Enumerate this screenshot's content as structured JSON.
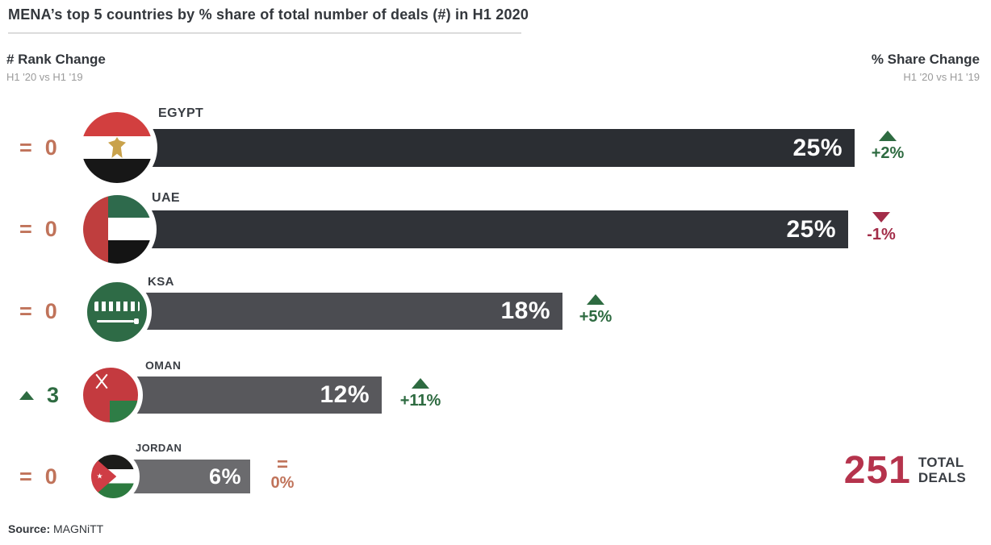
{
  "title": "MENA’s top 5 countries by % share of total number of deals (#) in H1 2020",
  "headers": {
    "rank": {
      "title": "# Rank Change",
      "subtitle": "H1 '20 vs H1 '19"
    },
    "share": {
      "title": "% Share Change",
      "subtitle": "H1 '20 vs H1 '19"
    }
  },
  "rows": [
    {
      "country": "EGYPT",
      "share_label": "25%",
      "rank_change": {
        "symbol": "=",
        "value": "0"
      },
      "share_change": {
        "direction": "up",
        "label": "+2%"
      }
    },
    {
      "country": "UAE",
      "share_label": "25%",
      "rank_change": {
        "symbol": "=",
        "value": "0"
      },
      "share_change": {
        "direction": "down",
        "label": "-1%"
      }
    },
    {
      "country": "KSA",
      "share_label": "18%",
      "rank_change": {
        "symbol": "=",
        "value": "0"
      },
      "share_change": {
        "direction": "up",
        "label": "+5%"
      }
    },
    {
      "country": "OMAN",
      "share_label": "12%",
      "rank_change": {
        "direction": "up",
        "value": "3"
      },
      "share_change": {
        "direction": "up",
        "label": "+11%"
      }
    },
    {
      "country": "JORDAN",
      "share_label": "6%",
      "rank_change": {
        "symbol": "=",
        "value": "0"
      },
      "share_change": {
        "symbol": "=",
        "label": "0%"
      }
    }
  ],
  "total": {
    "value": "251",
    "line1": "TOTAL",
    "line2": "DEALS"
  },
  "source": {
    "label": "Source:",
    "value": "MAGNiTT"
  },
  "colors": {
    "bar_egypt": "#2b2e33",
    "bar_uae": "#303338",
    "bar_ksa": "#4b4c51",
    "bar_oman": "#58585c",
    "bar_jordan": "#6b6b6e",
    "positive_green": "#2e6b41",
    "negative_red": "#a32d49",
    "neutral_orange": "#c0735a",
    "total_maroon": "#b5334c",
    "text_dark": "#33373c",
    "text_gray": "#9b9b9b"
  },
  "chart_data": {
    "type": "bar",
    "orientation": "horizontal",
    "title": "MENA’s top 5 countries by % share of total number of deals (#) in H1 2020",
    "categories": [
      "EGYPT",
      "UAE",
      "KSA",
      "OMAN",
      "JORDAN"
    ],
    "values": [
      25,
      25,
      18,
      12,
      6
    ],
    "unit": "% share of total number of deals",
    "rank_change_h1_20_vs_h1_19": [
      0,
      0,
      0,
      3,
      0
    ],
    "share_change_h1_20_vs_h1_19": [
      "+2%",
      "-1%",
      "+5%",
      "+11%",
      "0%"
    ],
    "total_deals": 251,
    "source": "MAGNiTT",
    "legend_position": "none",
    "grid": false
  }
}
